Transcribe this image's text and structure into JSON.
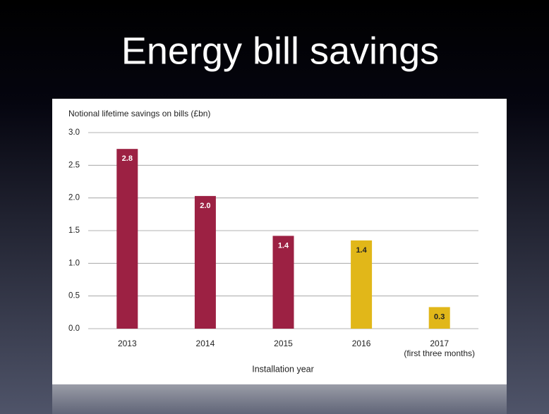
{
  "chart_data": {
    "type": "bar",
    "title": "Energy bill savings",
    "ylabel": "Notional lifetime savings on bills (£bn)",
    "xlabel": "Installation year",
    "categories": [
      "2013",
      "2014",
      "2015",
      "2016",
      "2017"
    ],
    "category_sublabels": [
      null,
      null,
      null,
      null,
      "(first three months)"
    ],
    "values": [
      2.75,
      2.03,
      1.42,
      1.35,
      0.33
    ],
    "value_labels": [
      "2.8",
      "2.0",
      "1.4",
      "1.4",
      "0.3"
    ],
    "colors": [
      "#9c2143",
      "#9c2143",
      "#9c2143",
      "#e1b719",
      "#e1b719"
    ],
    "value_label_colors": [
      "#ffffff",
      "#ffffff",
      "#ffffff",
      "#222222",
      "#222222"
    ],
    "ylim": [
      0,
      3
    ],
    "yticks": [
      {
        "value": 0,
        "label": "0.0"
      },
      {
        "value": 0.5,
        "label": "0.5"
      },
      {
        "value": 1,
        "label": "1.0"
      },
      {
        "value": 1.5,
        "label": "1.5"
      },
      {
        "value": 2,
        "label": "2.0"
      },
      {
        "value": 2.5,
        "label": "2.5"
      },
      {
        "value": 3,
        "label": "3.0"
      }
    ],
    "grid": true
  }
}
